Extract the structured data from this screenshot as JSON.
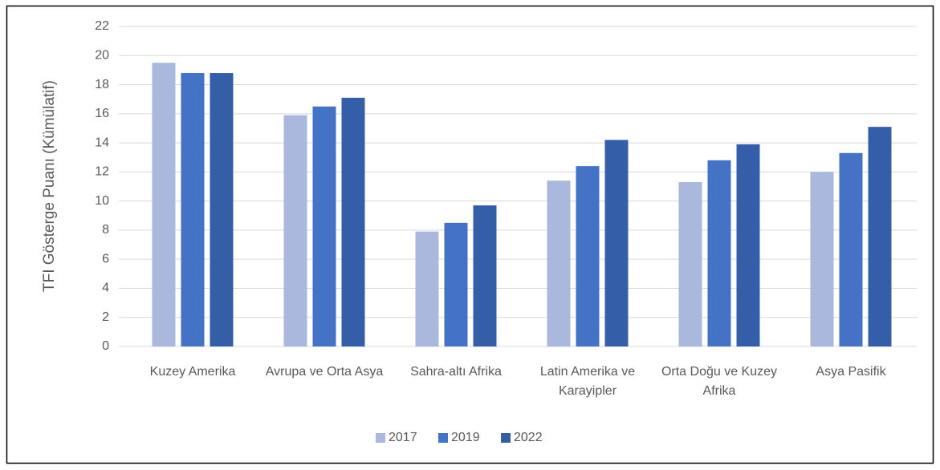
{
  "chart_data": {
    "type": "bar",
    "y_label": "TFI Gösterge Puanı (Kümülatif)",
    "categories": [
      "Kuzey Amerika",
      "Avrupa ve Orta Asya",
      "Sahra-altı Afrika",
      "Latin Amerika ve Karayipler",
      "Orta Doğu ve Kuzey Afrika",
      "Asya Pasifik"
    ],
    "series": [
      {
        "name": "2017",
        "color": "#a9b8dc",
        "values": [
          19.5,
          15.9,
          7.9,
          11.4,
          11.3,
          12.0
        ]
      },
      {
        "name": "2019",
        "color": "#4472c4",
        "values": [
          18.8,
          16.5,
          8.5,
          12.4,
          12.8,
          13.3
        ]
      },
      {
        "name": "2022",
        "color": "#345fa8",
        "values": [
          18.8,
          17.1,
          9.7,
          14.2,
          13.9,
          15.1
        ]
      }
    ],
    "ylim": [
      0,
      22
    ],
    "yticks": [
      0,
      2,
      4,
      6,
      8,
      10,
      12,
      14,
      16,
      18,
      20,
      22
    ],
    "grid": true,
    "legend": "bottom"
  }
}
